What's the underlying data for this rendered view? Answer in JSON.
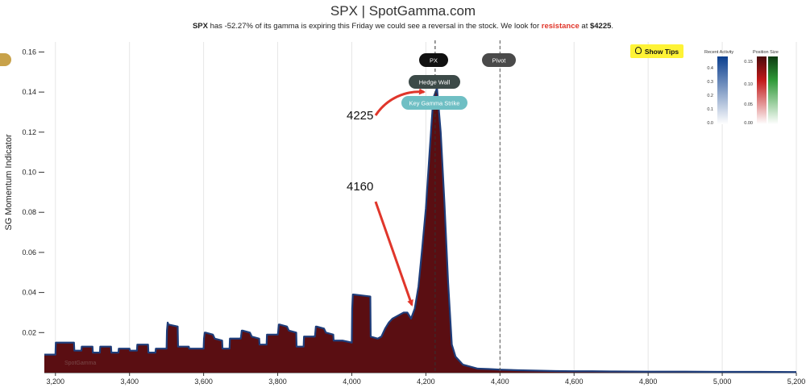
{
  "title": "SPX | SpotGamma.com",
  "subtitle": {
    "ticker": "SPX",
    "part1": " has -52.27% of its gamma is expiring this Friday we could see a reversal in the stock. We look for ",
    "highlight": "resistance",
    "part2": " at ",
    "level": "$4225",
    "part3": "."
  },
  "show_tips_label": "Show Tips",
  "watermark": "SpotGamma",
  "annotations": {
    "upper": "4225",
    "lower": "4160"
  },
  "markers": {
    "px": "PX",
    "pivot": "Pivot",
    "hedge_wall": "Hedge Wall",
    "key_gamma_strike": "Key Gamma Strike"
  },
  "legend": {
    "recent_activity": {
      "title": "Recent Activity",
      "ticks": [
        "0.4",
        "0.3",
        "0.2",
        "0.1",
        "0.0"
      ]
    },
    "position_size": {
      "title": "Position Size",
      "ticks": [
        "0.15",
        "0.10",
        "0.05",
        "0.00"
      ]
    }
  },
  "colors": {
    "fill": "#5a0e12",
    "line": "#1e3d7a",
    "accent": "#e0362b"
  },
  "chart_data": {
    "type": "area",
    "ylabel": "SG Momentum Indicator",
    "xlim": [
      3170,
      5200
    ],
    "ylim": [
      0,
      0.165
    ],
    "xticks": [
      3200,
      3400,
      3600,
      3800,
      4000,
      4200,
      4400,
      4600,
      4800,
      5000,
      5200
    ],
    "xtick_labels": [
      "3,200",
      "3,400",
      "3,600",
      "3,800",
      "4,000",
      "4,200",
      "4,400",
      "4,600",
      "4,800",
      "5,000",
      "5,200"
    ],
    "yticks": [
      0.02,
      0.04,
      0.06,
      0.08,
      0.1,
      0.12,
      0.14,
      0.16
    ],
    "ytick_labels": [
      "0.02",
      "0.04",
      "0.06",
      "0.08",
      "0.10",
      "0.12",
      "0.14",
      "0.16"
    ],
    "grid": true,
    "vlines": {
      "px": 4225,
      "pivot": 4400
    },
    "series": [
      {
        "x": [
          3170,
          3200,
          3201,
          3250,
          3251,
          3270,
          3271,
          3300,
          3301,
          3320,
          3321,
          3350,
          3351,
          3370,
          3371,
          3400,
          3401,
          3420,
          3421,
          3450,
          3451,
          3470,
          3471,
          3500,
          3501,
          3503,
          3505,
          3530,
          3531,
          3560,
          3561,
          3600,
          3601,
          3603,
          3605,
          3625,
          3630,
          3650,
          3651,
          3670,
          3671,
          3700,
          3701,
          3703,
          3705,
          3725,
          3730,
          3750,
          3751,
          3770,
          3771,
          3800,
          3801,
          3803,
          3805,
          3825,
          3830,
          3850,
          3851,
          3870,
          3871,
          3900,
          3901,
          3903,
          3905,
          3925,
          3930,
          3950,
          3951,
          3975,
          4000,
          4001,
          4003,
          4005,
          4050,
          4051,
          4070,
          4080,
          4090,
          4100,
          4110,
          4120,
          4130,
          4140,
          4150,
          4160,
          4170,
          4180,
          4190,
          4200,
          4210,
          4220,
          4230,
          4240,
          4250,
          4260,
          4270,
          4280,
          4290,
          4300,
          4320,
          4340,
          4370,
          4400,
          4450,
          4500,
          4550,
          4600,
          4650,
          4700,
          4800,
          4900,
          5000,
          5100,
          5200
        ],
        "y": [
          0.009,
          0.009,
          0.015,
          0.015,
          0.011,
          0.011,
          0.013,
          0.013,
          0.01,
          0.01,
          0.013,
          0.013,
          0.01,
          0.01,
          0.012,
          0.012,
          0.011,
          0.011,
          0.014,
          0.014,
          0.01,
          0.01,
          0.012,
          0.012,
          0.021,
          0.025,
          0.024,
          0.023,
          0.013,
          0.013,
          0.012,
          0.012,
          0.017,
          0.02,
          0.02,
          0.019,
          0.017,
          0.016,
          0.012,
          0.012,
          0.017,
          0.017,
          0.018,
          0.021,
          0.021,
          0.02,
          0.018,
          0.017,
          0.014,
          0.014,
          0.019,
          0.019,
          0.02,
          0.024,
          0.024,
          0.023,
          0.021,
          0.02,
          0.013,
          0.013,
          0.018,
          0.018,
          0.019,
          0.023,
          0.023,
          0.022,
          0.02,
          0.019,
          0.016,
          0.016,
          0.015,
          0.032,
          0.039,
          0.039,
          0.038,
          0.018,
          0.017,
          0.018,
          0.022,
          0.025,
          0.027,
          0.028,
          0.029,
          0.03,
          0.03,
          0.027,
          0.032,
          0.043,
          0.062,
          0.082,
          0.11,
          0.137,
          0.142,
          0.12,
          0.085,
          0.045,
          0.014,
          0.008,
          0.006,
          0.004,
          0.003,
          0.002,
          0.0018,
          0.0015,
          0.0012,
          0.001,
          0.0008,
          0.0007,
          0.0007,
          0.0006,
          0.0005,
          0.0005,
          0.0004,
          0.0004,
          0.0003
        ]
      }
    ]
  }
}
